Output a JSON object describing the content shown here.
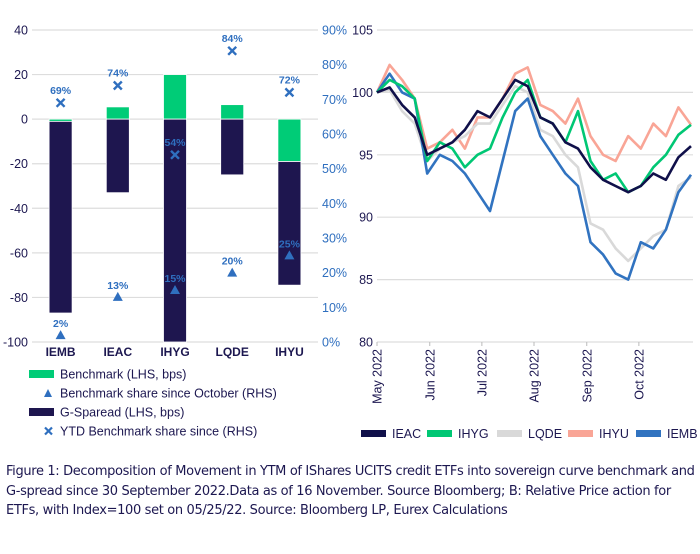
{
  "chart_data": [
    {
      "type": "bar",
      "title": "",
      "stacked": true,
      "categories": [
        "IEMB",
        "IEAC",
        "IHYG",
        "LQDE",
        "IHYU"
      ],
      "series": [
        {
          "name": "Benchmark (LHS, bps)",
          "axis": "left",
          "color": "#00cc77",
          "values": [
            -1,
            5.5,
            20,
            6.5,
            -19
          ]
        },
        {
          "name": "G-Sparead (LHS, bps)",
          "axis": "left",
          "color": "#1e164f",
          "values": [
            -86,
            -33,
            -100,
            -25,
            -55.5
          ]
        },
        {
          "name": "Benchmark share since October (RHS)",
          "axis": "right",
          "marker": "triangle",
          "color": "#2f6fbf",
          "values": [
            2,
            13,
            15,
            20,
            25
          ],
          "labels": [
            "2%",
            "13%",
            "15%",
            "20%",
            "25%"
          ]
        },
        {
          "name": "YTD Benchmark share since (RHS)",
          "axis": "right",
          "marker": "x",
          "color": "#2f6fbf",
          "values": [
            69,
            74,
            54,
            84,
            72
          ],
          "labels": [
            "69%",
            "74%",
            "54%",
            "84%",
            "72%"
          ]
        }
      ],
      "ylim_left": [
        -100,
        40
      ],
      "yticks_left": [
        "40",
        "20",
        "0",
        "-20",
        "-40",
        "-60",
        "-80",
        "-100"
      ],
      "ytick_values_left": [
        40,
        20,
        0,
        -20,
        -40,
        -60,
        -80,
        -100
      ],
      "ylim_right": [
        0,
        90
      ],
      "yticks_right": [
        "90%",
        "80%",
        "70%",
        "60%",
        "50%",
        "40%",
        "30%",
        "20%",
        "10%",
        "0%"
      ],
      "ytick_values_right": [
        90,
        80,
        70,
        60,
        50,
        40,
        30,
        20,
        10,
        0
      ],
      "grid": true,
      "legend_position": "bottom"
    },
    {
      "type": "line",
      "title": "",
      "xlabel": "",
      "ylabel": "",
      "ylim": [
        80,
        105
      ],
      "yticks": [
        "105",
        "100",
        "95",
        "90",
        "85",
        "80"
      ],
      "ytick_values": [
        105,
        100,
        95,
        90,
        85,
        80
      ],
      "xticks": [
        "May 2022",
        "Jun 2022",
        "Jul 2022",
        "Aug 2022",
        "Sep 2022",
        "Oct 2022"
      ],
      "xtick_positions": [
        0,
        4.2,
        8.35,
        12.5,
        16.7,
        20.85
      ],
      "n_points": 26,
      "grid": true,
      "legend_position": "bottom",
      "series": [
        {
          "name": "IHYU",
          "color": "#f9a596",
          "values": [
            100,
            102.2,
            101,
            99.5,
            95.5,
            96,
            97,
            95.5,
            98,
            98,
            99.5,
            101.5,
            102,
            99,
            98.5,
            97.5,
            99.5,
            96.5,
            95,
            94.5,
            96.5,
            95.5,
            97.5,
            96.5,
            98.8,
            97.4
          ]
        },
        {
          "name": "LQDE",
          "color": "#d9d9d9",
          "values": [
            100,
            100.2,
            98.5,
            97.5,
            94.5,
            95.5,
            96,
            96.5,
            97.5,
            97.5,
            99,
            100.5,
            100,
            97,
            96.5,
            95,
            94,
            89.5,
            89,
            87.5,
            86.5,
            87.5,
            88.5,
            89,
            92.5,
            93.2
          ]
        },
        {
          "name": "IEMB",
          "color": "#3173c0",
          "values": [
            100,
            101.5,
            100,
            99.5,
            93.5,
            95,
            94.5,
            93.5,
            92,
            90.5,
            94.5,
            98.5,
            99.5,
            96.5,
            95,
            93.5,
            92.5,
            88,
            87,
            85.5,
            85,
            88,
            87.5,
            89,
            92,
            93.4
          ]
        },
        {
          "name": "IHYG",
          "color": "#00c774",
          "values": [
            100,
            101,
            100.5,
            99.5,
            94.5,
            96,
            95.5,
            94,
            95,
            95.5,
            98,
            100,
            101,
            98,
            97.5,
            96,
            98.5,
            94.5,
            93,
            93.5,
            92,
            92.5,
            94,
            95,
            96.6,
            97.4
          ]
        },
        {
          "name": "IEAC",
          "color": "#10104a",
          "values": [
            100,
            100.4,
            99,
            98,
            95,
            95.5,
            96,
            97,
            98.5,
            98,
            99.5,
            101,
            100.5,
            98,
            97.5,
            96,
            95.5,
            94,
            93,
            92.5,
            92,
            92.5,
            93.5,
            93,
            94.8,
            95.7
          ]
        }
      ],
      "legend_order": [
        "IEAC",
        "IHYG",
        "LQDE",
        "IHYU",
        "IEMB"
      ]
    }
  ],
  "caption": "Figure 1: Decomposition of Movement in YTM of IShares UCITS credit ETFs into sovereign curve benchmark and G-spread since 30 September 2022.Data as of 16 November. Source Bloomberg; B: Relative Price action for ETFs, with Index=100 set on 05/25/22. Source: Bloomberg LP, Eurex Calculations"
}
